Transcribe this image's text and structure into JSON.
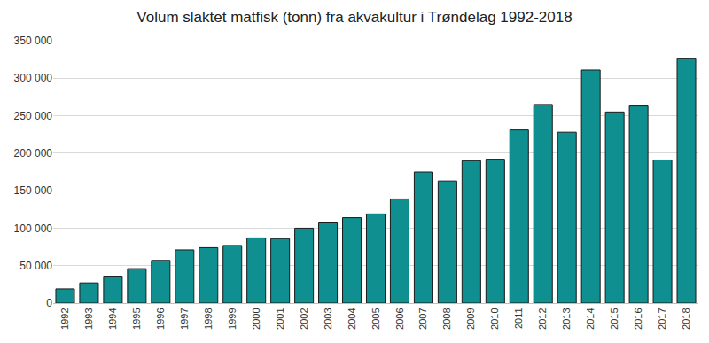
{
  "chart_data": {
    "type": "bar",
    "title": "Volum slaktet matfisk (tonn) fra akvakultur i Trøndelag 1992-2018",
    "categories": [
      "1992",
      "1993",
      "1994",
      "1995",
      "1996",
      "1997",
      "1998",
      "1999",
      "2000",
      "2001",
      "2002",
      "2003",
      "2004",
      "2005",
      "2006",
      "2007",
      "2008",
      "2009",
      "2010",
      "2011",
      "2012",
      "2013",
      "2014",
      "2015",
      "2016",
      "2017",
      "2018"
    ],
    "values": [
      19000,
      27000,
      36000,
      46000,
      57000,
      71000,
      74000,
      77000,
      87000,
      86000,
      100000,
      107000,
      114000,
      119000,
      139000,
      175000,
      163000,
      190000,
      192000,
      231000,
      265000,
      228000,
      311000,
      255000,
      263000,
      191000,
      326000
    ],
    "color": "#0f8f8f",
    "ylim": [
      0,
      350000
    ],
    "yticks": [
      0,
      {
        "value": 50000,
        "label": "50 000"
      },
      {
        "value": 100000,
        "label": "100 000"
      },
      {
        "value": 150000,
        "label": "150 000"
      },
      {
        "value": 200000,
        "label": "200 000"
      },
      {
        "value": 250000,
        "label": "250 000"
      },
      {
        "value": 300000,
        "label": "300 000"
      },
      {
        "value": 350000,
        "label": "350 000"
      }
    ],
    "grid": true
  }
}
